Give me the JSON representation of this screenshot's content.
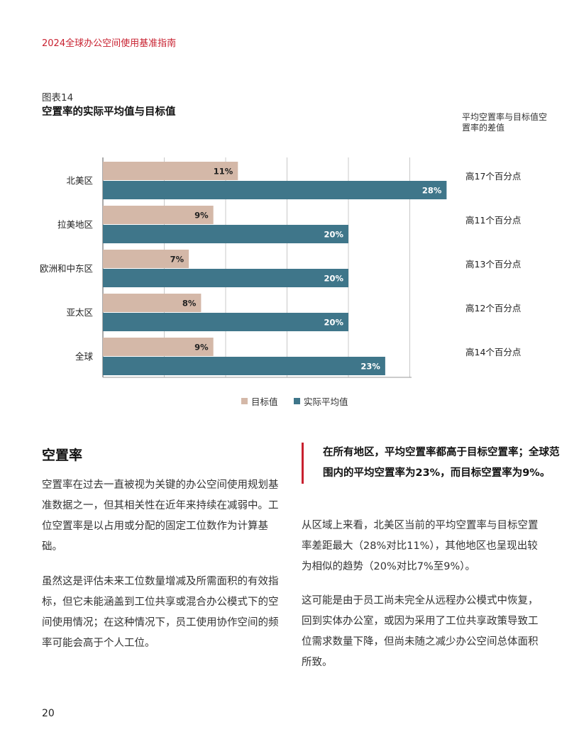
{
  "header": {
    "title": "2024全球办公空间使用基准指南"
  },
  "figure": {
    "label": "图表14",
    "title": "空置率的实际平均值与目标值",
    "diff_header": "平均空置率与目标值空置率的差值"
  },
  "chart_data": {
    "type": "bar",
    "orientation": "horizontal",
    "categories": [
      "北美区",
      "拉美地区",
      "欧洲和中东区",
      "亚太区",
      "全球"
    ],
    "series": [
      {
        "name": "目标值",
        "values": [
          11,
          9,
          7,
          8,
          9
        ],
        "color": "#d4b8a8",
        "labels": [
          "11%",
          "9%",
          "7%",
          "8%",
          "9%"
        ]
      },
      {
        "name": "实际平均值",
        "values": [
          28,
          20,
          20,
          20,
          23
        ],
        "color": "#3f768a",
        "labels": [
          "28%",
          "20%",
          "20%",
          "20%",
          "23%"
        ]
      }
    ],
    "xlim": [
      0,
      30
    ],
    "grid": true,
    "legend": "bottom",
    "differences": [
      "高17个百分点",
      "高11个百分点",
      "高13个百分点",
      "高12个百分点",
      "高14个百分点"
    ]
  },
  "legend": {
    "target": "目标值",
    "actual": "实际平均值",
    "target_color": "#d4b8a8",
    "actual_color": "#3f768a"
  },
  "section": {
    "title": "空置率",
    "p1": "空置率在过去一直被视为关键的办公空间使用规划基准数据之一，但其相关性在近年来持续在减弱中。工位空置率是以占用或分配的固定工位数作为计算基础。",
    "p2": "虽然这是评估未来工位数量增减及所需面积的有效指标，但它未能涵盖到工位共享或混合办公模式下的空间使用情况；在这种情况下，员工使用协作空间的频率可能会高于个人工位。"
  },
  "pullquote": "在所有地区，平均空置率都高于目标空置率；全球范围内的平均空置率为23%，而目标空置率为9%。",
  "right": {
    "p3": "从区域上来看，北美区当前的平均空置率与目标空置率差距最大（28%对比11%），其他地区也呈现出较为相似的趋势（20%对比7%至9%）。",
    "p4": "这可能是由于员工尚未完全从远程办公模式中恢复，回到实体办公室，或因为采用了工位共享政策导致工位需求数量下降，但尚未随之减少办公空间总体面积所致。"
  },
  "page_number": "20",
  "colors": {
    "accent": "#c8202f"
  }
}
